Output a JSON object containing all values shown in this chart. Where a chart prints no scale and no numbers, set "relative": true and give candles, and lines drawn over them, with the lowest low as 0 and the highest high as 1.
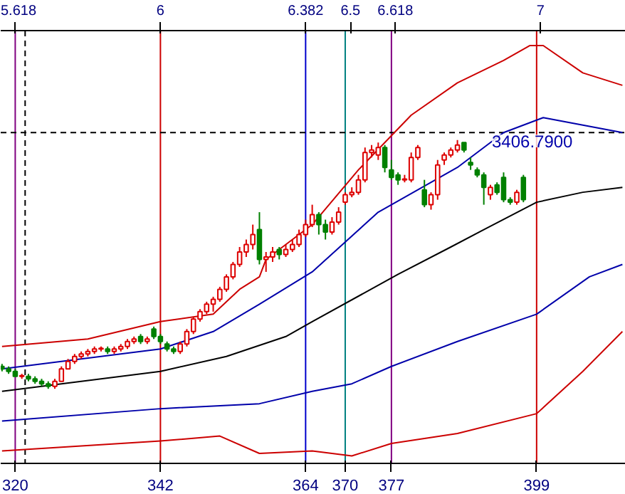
{
  "chart_data": {
    "type": "candlestick",
    "relative": true,
    "x": [
      318,
      319,
      320,
      321,
      322,
      323,
      324,
      325,
      326,
      327,
      328,
      329,
      330,
      331,
      332,
      333,
      334,
      335,
      336,
      337,
      338,
      339,
      340,
      341,
      342,
      343,
      344,
      345,
      346,
      347,
      348,
      349,
      350,
      351,
      352,
      353,
      354,
      355,
      356,
      357,
      358,
      359,
      360,
      361,
      362,
      363,
      364,
      365,
      366,
      367,
      368,
      369,
      370,
      371,
      372,
      373,
      374,
      375,
      376,
      377,
      378,
      379,
      380,
      381,
      382,
      383,
      384,
      385,
      386,
      387,
      388,
      389,
      390,
      391,
      392,
      393,
      394,
      395,
      396,
      397
    ],
    "ohlc": [
      [
        0.09,
        0.1,
        0.07,
        0.08
      ],
      [
        0.08,
        0.09,
        0.06,
        0.07
      ],
      [
        0.07,
        0.08,
        0.05,
        0.05
      ],
      [
        0.05,
        0.06,
        0.04,
        0.05
      ],
      [
        0.05,
        0.06,
        0.03,
        0.04
      ],
      [
        0.04,
        0.05,
        0.02,
        0.03
      ],
      [
        0.03,
        0.04,
        0.01,
        0.02
      ],
      [
        0.02,
        0.03,
        0.0,
        0.01
      ],
      [
        0.01,
        0.04,
        0.0,
        0.03
      ],
      [
        0.03,
        0.09,
        0.03,
        0.08
      ],
      [
        0.08,
        0.12,
        0.08,
        0.11
      ],
      [
        0.11,
        0.14,
        0.1,
        0.13
      ],
      [
        0.13,
        0.15,
        0.12,
        0.14
      ],
      [
        0.14,
        0.16,
        0.13,
        0.15
      ],
      [
        0.15,
        0.17,
        0.14,
        0.16
      ],
      [
        0.16,
        0.17,
        0.15,
        0.16
      ],
      [
        0.16,
        0.17,
        0.14,
        0.15
      ],
      [
        0.15,
        0.17,
        0.14,
        0.16
      ],
      [
        0.16,
        0.18,
        0.15,
        0.17
      ],
      [
        0.17,
        0.2,
        0.16,
        0.19
      ],
      [
        0.19,
        0.21,
        0.18,
        0.2
      ],
      [
        0.21,
        0.22,
        0.18,
        0.19
      ],
      [
        0.19,
        0.21,
        0.18,
        0.2
      ],
      [
        0.24,
        0.25,
        0.2,
        0.21
      ],
      [
        0.21,
        0.22,
        0.18,
        0.19
      ],
      [
        0.18,
        0.19,
        0.15,
        0.16
      ],
      [
        0.16,
        0.17,
        0.14,
        0.15
      ],
      [
        0.15,
        0.19,
        0.14,
        0.18
      ],
      [
        0.18,
        0.24,
        0.17,
        0.23
      ],
      [
        0.23,
        0.29,
        0.22,
        0.28
      ],
      [
        0.28,
        0.32,
        0.27,
        0.31
      ],
      [
        0.31,
        0.35,
        0.3,
        0.34
      ],
      [
        0.34,
        0.37,
        0.31,
        0.36
      ],
      [
        0.36,
        0.41,
        0.35,
        0.4
      ],
      [
        0.4,
        0.46,
        0.39,
        0.45
      ],
      [
        0.45,
        0.51,
        0.44,
        0.5
      ],
      [
        0.5,
        0.57,
        0.49,
        0.55
      ],
      [
        0.55,
        0.6,
        0.53,
        0.58
      ],
      [
        0.58,
        0.66,
        0.56,
        0.62
      ],
      [
        0.64,
        0.71,
        0.5,
        0.52
      ],
      [
        0.52,
        0.55,
        0.47,
        0.53
      ],
      [
        0.53,
        0.57,
        0.51,
        0.55
      ],
      [
        0.56,
        0.57,
        0.52,
        0.54
      ],
      [
        0.54,
        0.58,
        0.53,
        0.56
      ],
      [
        0.56,
        0.6,
        0.55,
        0.58
      ],
      [
        0.58,
        0.64,
        0.57,
        0.62
      ],
      [
        0.62,
        0.68,
        0.61,
        0.66
      ],
      [
        0.66,
        0.74,
        0.65,
        0.7
      ],
      [
        0.7,
        0.71,
        0.62,
        0.66
      ],
      [
        0.66,
        0.68,
        0.6,
        0.63
      ],
      [
        0.63,
        0.69,
        0.62,
        0.67
      ],
      [
        0.67,
        0.73,
        0.66,
        0.71
      ],
      [
        0.75,
        0.79,
        0.74,
        0.78
      ],
      [
        0.78,
        0.81,
        0.77,
        0.79
      ],
      [
        0.79,
        0.86,
        0.78,
        0.84
      ],
      [
        0.84,
        0.97,
        0.83,
        0.95
      ],
      [
        0.95,
        0.98,
        0.93,
        0.96
      ],
      [
        0.94,
        0.99,
        0.92,
        0.97
      ],
      [
        0.97,
        0.98,
        0.87,
        0.89
      ],
      [
        0.88,
        0.92,
        0.84,
        0.85
      ],
      [
        0.86,
        0.87,
        0.82,
        0.84
      ],
      [
        0.84,
        0.86,
        0.83,
        0.84
      ],
      [
        0.84,
        0.95,
        0.83,
        0.93
      ],
      [
        0.93,
        0.98,
        0.92,
        0.97
      ],
      [
        0.8,
        0.84,
        0.73,
        0.74
      ],
      [
        0.74,
        0.79,
        0.72,
        0.78
      ],
      [
        0.78,
        0.92,
        0.76,
        0.9
      ],
      [
        0.92,
        0.95,
        0.9,
        0.94
      ],
      [
        0.94,
        0.97,
        0.93,
        0.96
      ],
      [
        0.96,
        1.0,
        0.95,
        0.98
      ],
      [
        0.99,
        0.99,
        0.95,
        0.96
      ],
      [
        0.91,
        0.93,
        0.88,
        0.9
      ],
      [
        0.88,
        0.89,
        0.85,
        0.86
      ],
      [
        0.86,
        0.87,
        0.74,
        0.81
      ],
      [
        0.78,
        0.82,
        0.76,
        0.81
      ],
      [
        0.82,
        0.83,
        0.78,
        0.79
      ],
      [
        0.85,
        0.87,
        0.75,
        0.76
      ],
      [
        0.76,
        0.77,
        0.74,
        0.75
      ],
      [
        0.75,
        0.8,
        0.74,
        0.79
      ],
      [
        0.85,
        0.86,
        0.75,
        0.76
      ]
    ],
    "series": [
      {
        "type": "line",
        "color": "#cc0000",
        "x": [
          318,
          331,
          342,
          350,
          354,
          357,
          358,
          361,
          365,
          372,
          380,
          387,
          394,
          398,
          400,
          406,
          412
        ],
        "values": [
          0.17,
          0.2,
          0.27,
          0.3,
          0.4,
          0.45,
          0.52,
          0.58,
          0.66,
          0.88,
          1.1,
          1.23,
          1.32,
          1.38,
          1.38,
          1.27,
          1.22
        ]
      },
      {
        "type": "line",
        "color": "#0000aa",
        "x": [
          318,
          342,
          350,
          357,
          365,
          375,
          387,
          394,
          400,
          406,
          412
        ],
        "values": [
          0.08,
          0.16,
          0.23,
          0.34,
          0.47,
          0.71,
          0.89,
          1.03,
          1.09,
          1.06,
          1.03
        ]
      },
      {
        "type": "line",
        "color": "#000000",
        "x": [
          318,
          342,
          352,
          361,
          365,
          378,
          386,
          391,
          399,
          406,
          412
        ],
        "values": [
          -0.01,
          0.07,
          0.13,
          0.21,
          0.27,
          0.46,
          0.57,
          0.64,
          0.75,
          0.79,
          0.81
        ]
      },
      {
        "type": "line",
        "color": "#0000aa",
        "x": [
          318,
          342,
          357,
          365,
          371,
          377,
          387,
          399,
          407,
          412
        ],
        "values": [
          -0.13,
          -0.08,
          -0.06,
          -0.01,
          0.02,
          0.09,
          0.19,
          0.3,
          0.45,
          0.5
        ]
      },
      {
        "type": "line",
        "color": "#cc0000",
        "x": [
          318,
          342,
          351,
          357,
          365,
          371,
          377,
          387,
          399,
          406,
          412
        ],
        "values": [
          -0.25,
          -0.21,
          -0.19,
          -0.26,
          -0.25,
          -0.27,
          -0.22,
          -0.18,
          -0.1,
          0.07,
          0.23
        ]
      }
    ],
    "xlim": [
      317.8,
      412.5
    ],
    "xticks": [
      320,
      342,
      364,
      370,
      377,
      399
    ],
    "x2lim": [
      5.58,
      7.224
    ],
    "x2ticks": [
      5.618,
      6,
      6.382,
      6.5,
      6.618,
      7
    ],
    "ref_lines": [
      {
        "axis": "x",
        "value": 320,
        "color": "#800080"
      },
      {
        "axis": "x",
        "value": 342,
        "color": "#cc0000"
      },
      {
        "axis": "x",
        "value": 364,
        "color": "#0000cc"
      },
      {
        "axis": "x",
        "value": 370,
        "color": "#008080"
      },
      {
        "axis": "x",
        "value": 377,
        "color": "#800080"
      },
      {
        "axis": "x",
        "value": 399,
        "color": "#cc0000"
      },
      {
        "axis": "x",
        "value": 321.5,
        "color": "#000000",
        "line_style": "dashed"
      },
      {
        "axis": "y",
        "value": 1.03,
        "color": "#000000",
        "line_style": "dashed"
      }
    ],
    "annotations": [
      "3406.7900"
    ],
    "tick_labels": "x",
    "grid": false
  }
}
